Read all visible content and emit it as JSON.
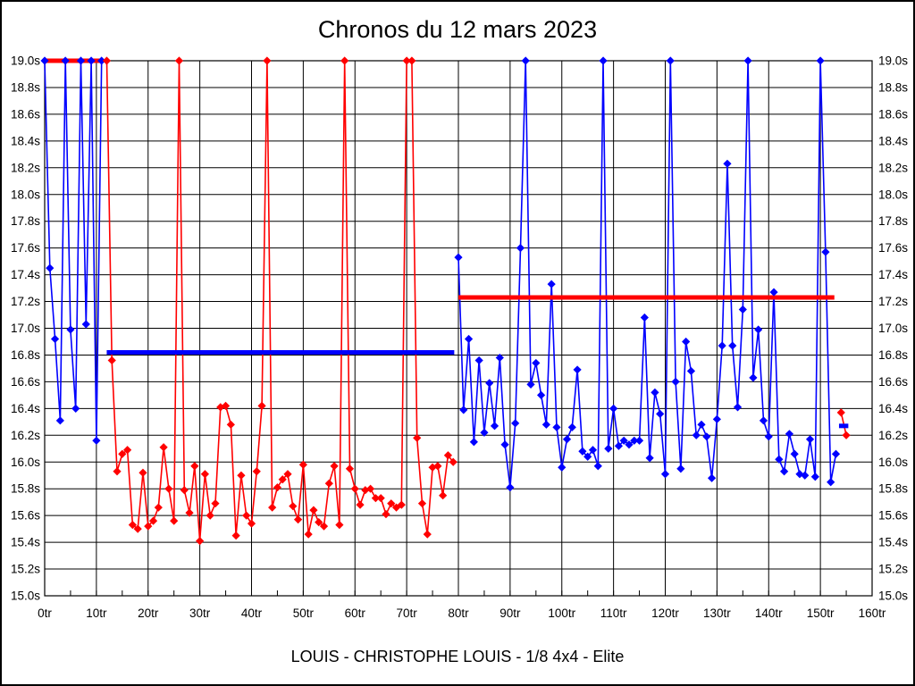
{
  "page": {
    "title": "Chronos du 12 mars 2023",
    "caption": "LOUIS - CHRISTOPHE LOUIS - 1/8 4x4 - Elite"
  },
  "chart_data": {
    "type": "line",
    "title": "Chronos du 12 mars 2023",
    "caption": "LOUIS - CHRISTOPHE LOUIS - 1/8 4x4 - Elite",
    "grid": true,
    "legend": "none",
    "clip_value": 19.0,
    "colors": {
      "red_series": "#ff0000",
      "blue_series": "#0000ff",
      "grid": "#000000",
      "text": "#000000"
    },
    "x_axis": {
      "unit": "tr",
      "min": 0,
      "max": 160,
      "tick_step": 10,
      "minor_tick_step": 5,
      "tick_labels": [
        "0tr",
        "10tr",
        "20tr",
        "30tr",
        "40tr",
        "50tr",
        "60tr",
        "70tr",
        "80tr",
        "90tr",
        "100tr",
        "110tr",
        "120tr",
        "130tr",
        "140tr",
        "150tr",
        "160tr"
      ]
    },
    "y_axis": {
      "unit": "s",
      "min": 15.0,
      "max": 19.0,
      "tick_step": 0.2,
      "tick_labels": [
        "19.0s",
        "18.8s",
        "18.6s",
        "18.4s",
        "18.2s",
        "18.0s",
        "17.8s",
        "17.6s",
        "17.4s",
        "17.2s",
        "17.0s",
        "16.8s",
        "16.6s",
        "16.4s",
        "16.2s",
        "16.0s",
        "15.8s",
        "15.6s",
        "15.4s",
        "15.2s",
        "15.0s"
      ]
    },
    "series": [
      {
        "name": "run1-blue",
        "color": "#0000ff",
        "start_lap": 0,
        "values": [
          19.0,
          17.45,
          16.92,
          16.31,
          19.0,
          16.99,
          16.4,
          19.0,
          17.03,
          19.0,
          16.16,
          19.0
        ]
      },
      {
        "name": "run2-red",
        "color": "#ff0000",
        "start_lap": 12,
        "values": [
          19.0,
          16.76,
          15.93,
          16.06,
          16.09,
          15.53,
          15.5,
          15.92,
          15.52,
          15.56,
          15.66,
          16.11,
          15.8,
          15.56,
          19.0,
          15.79,
          15.62,
          15.97,
          15.41,
          15.91,
          15.6,
          15.69,
          16.41,
          16.42,
          16.28,
          15.45,
          15.9,
          15.6,
          15.54,
          15.93,
          16.42,
          19.0,
          15.66,
          15.81,
          15.87,
          15.91,
          15.67,
          15.57,
          15.98,
          15.46,
          15.64,
          15.55,
          15.52,
          15.84,
          15.97,
          15.53,
          19.0,
          15.95,
          15.8,
          15.68,
          15.79,
          15.8,
          15.73,
          15.73,
          15.61,
          15.69,
          15.66,
          15.68,
          19.0,
          19.0,
          16.18,
          15.69,
          15.46,
          15.96,
          15.97,
          15.75,
          16.05,
          16.0
        ]
      },
      {
        "name": "run3-blue",
        "color": "#0000ff",
        "start_lap": 80,
        "values": [
          17.53,
          16.39,
          16.92,
          16.15,
          16.76,
          16.22,
          16.59,
          16.27,
          16.78,
          16.13,
          15.81,
          16.29,
          17.6,
          19.0,
          16.58,
          16.74,
          16.5,
          16.28,
          17.33,
          16.26,
          15.96,
          16.17,
          16.26,
          16.69,
          16.08,
          16.04,
          16.09,
          15.97,
          19.0,
          16.1,
          16.4,
          16.12,
          16.16,
          16.13,
          16.16,
          16.16,
          17.08,
          16.03,
          16.52,
          16.36,
          15.91,
          19.0,
          16.6,
          15.95,
          16.9,
          16.68,
          16.2,
          16.28,
          16.19,
          15.88,
          16.32,
          16.87,
          18.23,
          16.87,
          16.41,
          17.14,
          19.0,
          16.63,
          16.99,
          16.31,
          16.19,
          17.27,
          16.02,
          15.93,
          16.21,
          16.06,
          15.91,
          15.9,
          16.17,
          15.89,
          19.0,
          17.57,
          15.85,
          16.06
        ]
      },
      {
        "name": "run4-red",
        "color": "#ff0000",
        "start_lap": 154,
        "values": [
          16.37,
          16.2
        ]
      }
    ],
    "average_lines": [
      {
        "name": "avg-run1",
        "color": "#ff0000",
        "value": 19.0,
        "from_lap": 0.0,
        "to_lap": 11.2
      },
      {
        "name": "avg-run2",
        "color": "#0000ff",
        "value": 16.82,
        "from_lap": 12.0,
        "to_lap": 79.2
      },
      {
        "name": "avg-run3",
        "color": "#ff0000",
        "value": 17.23,
        "from_lap": 80.0,
        "to_lap": 152.7
      },
      {
        "name": "avg-run4",
        "color": "#0000ff",
        "value": 16.27,
        "from_lap": 153.6,
        "to_lap": 155.4
      }
    ]
  }
}
